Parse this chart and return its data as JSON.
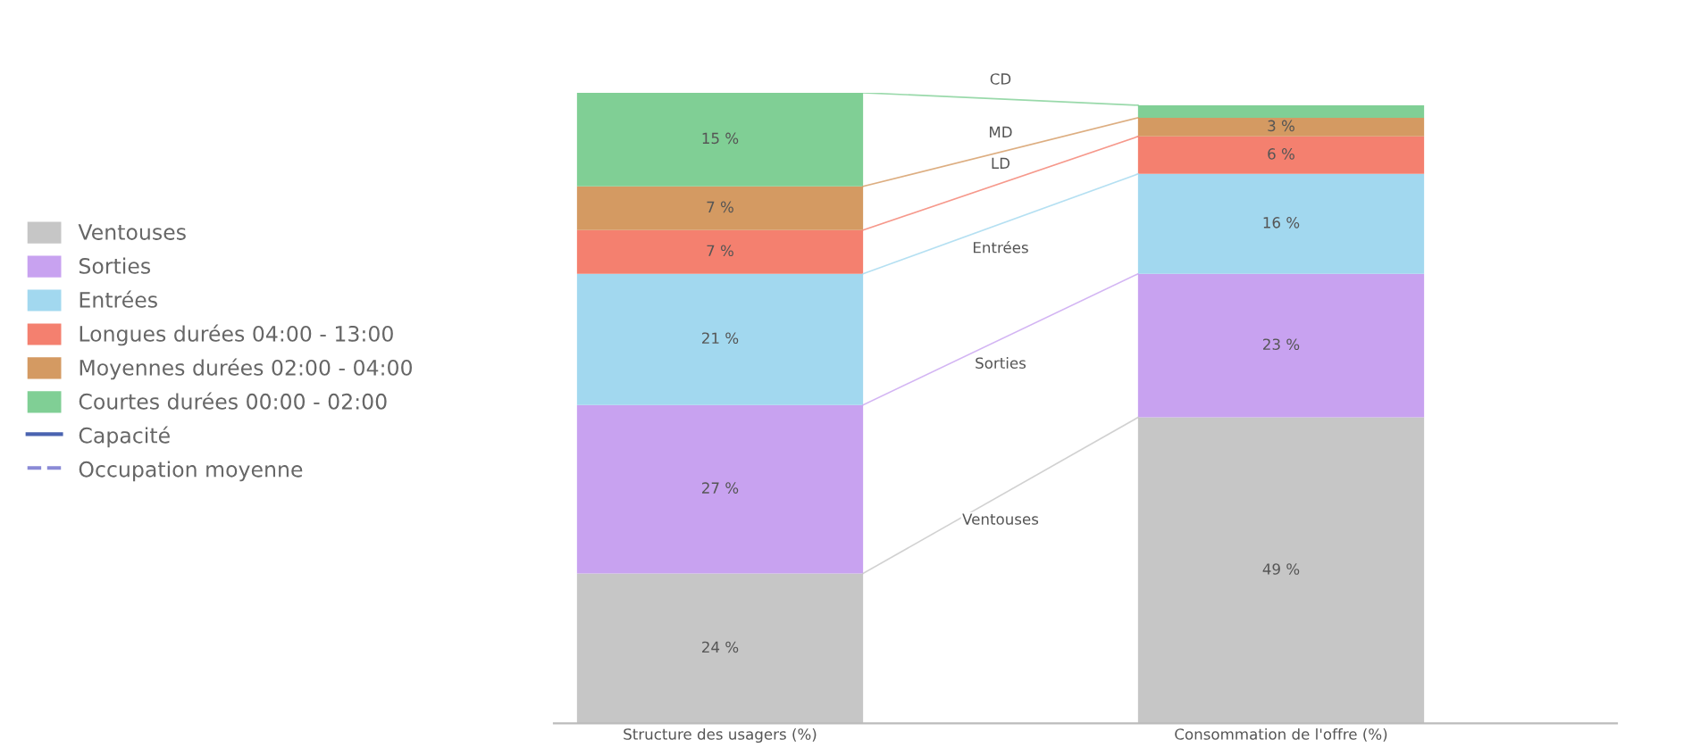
{
  "chart_data": {
    "type": "bar",
    "stacked": true,
    "categories": [
      "Structure des usagers (%)",
      "Consommation de l'offre (%)"
    ],
    "series": [
      {
        "name": "Ventouses",
        "color": "#c6c6c6",
        "values": [
          24,
          49
        ],
        "value_labels": [
          "24 %",
          "49 %"
        ]
      },
      {
        "name": "Sorties",
        "color": "#c8a2f0",
        "values": [
          27,
          23
        ],
        "value_labels": [
          "27 %",
          "23 %"
        ]
      },
      {
        "name": "Entrées",
        "color": "#a2d8ef",
        "values": [
          21,
          16
        ],
        "value_labels": [
          "21 %",
          "16 %"
        ]
      },
      {
        "name": "Longues durées 04:00 - 13:00",
        "color": "#f4806f",
        "values": [
          7,
          6
        ],
        "value_labels": [
          "7 %",
          "6 %"
        ]
      },
      {
        "name": "Moyennes durées 02:00 - 04:00",
        "color": "#d49a62",
        "values": [
          7,
          3
        ],
        "value_labels": [
          "7 %",
          "3 %"
        ]
      },
      {
        "name": "Courtes durées 00:00 - 02:00",
        "color": "#80cf95",
        "values": [
          15,
          2
        ],
        "value_labels": [
          "15 %",
          null
        ]
      },
      {
        "name": "Capacité",
        "type": "line",
        "color": "#4a63b0",
        "line_style": "solid",
        "values": [
          null,
          null
        ]
      },
      {
        "name": "Occupation moyenne",
        "type": "line",
        "color": "#8a8ad6",
        "line_style": "dashed",
        "values": [
          null,
          null
        ]
      }
    ],
    "annotations": [
      "Ventouses",
      "Sorties",
      "Entrées",
      "LD",
      "MD",
      "CD"
    ],
    "ylim": [
      0,
      101
    ],
    "legend": "left",
    "tick_labels": "x",
    "grid": false
  }
}
